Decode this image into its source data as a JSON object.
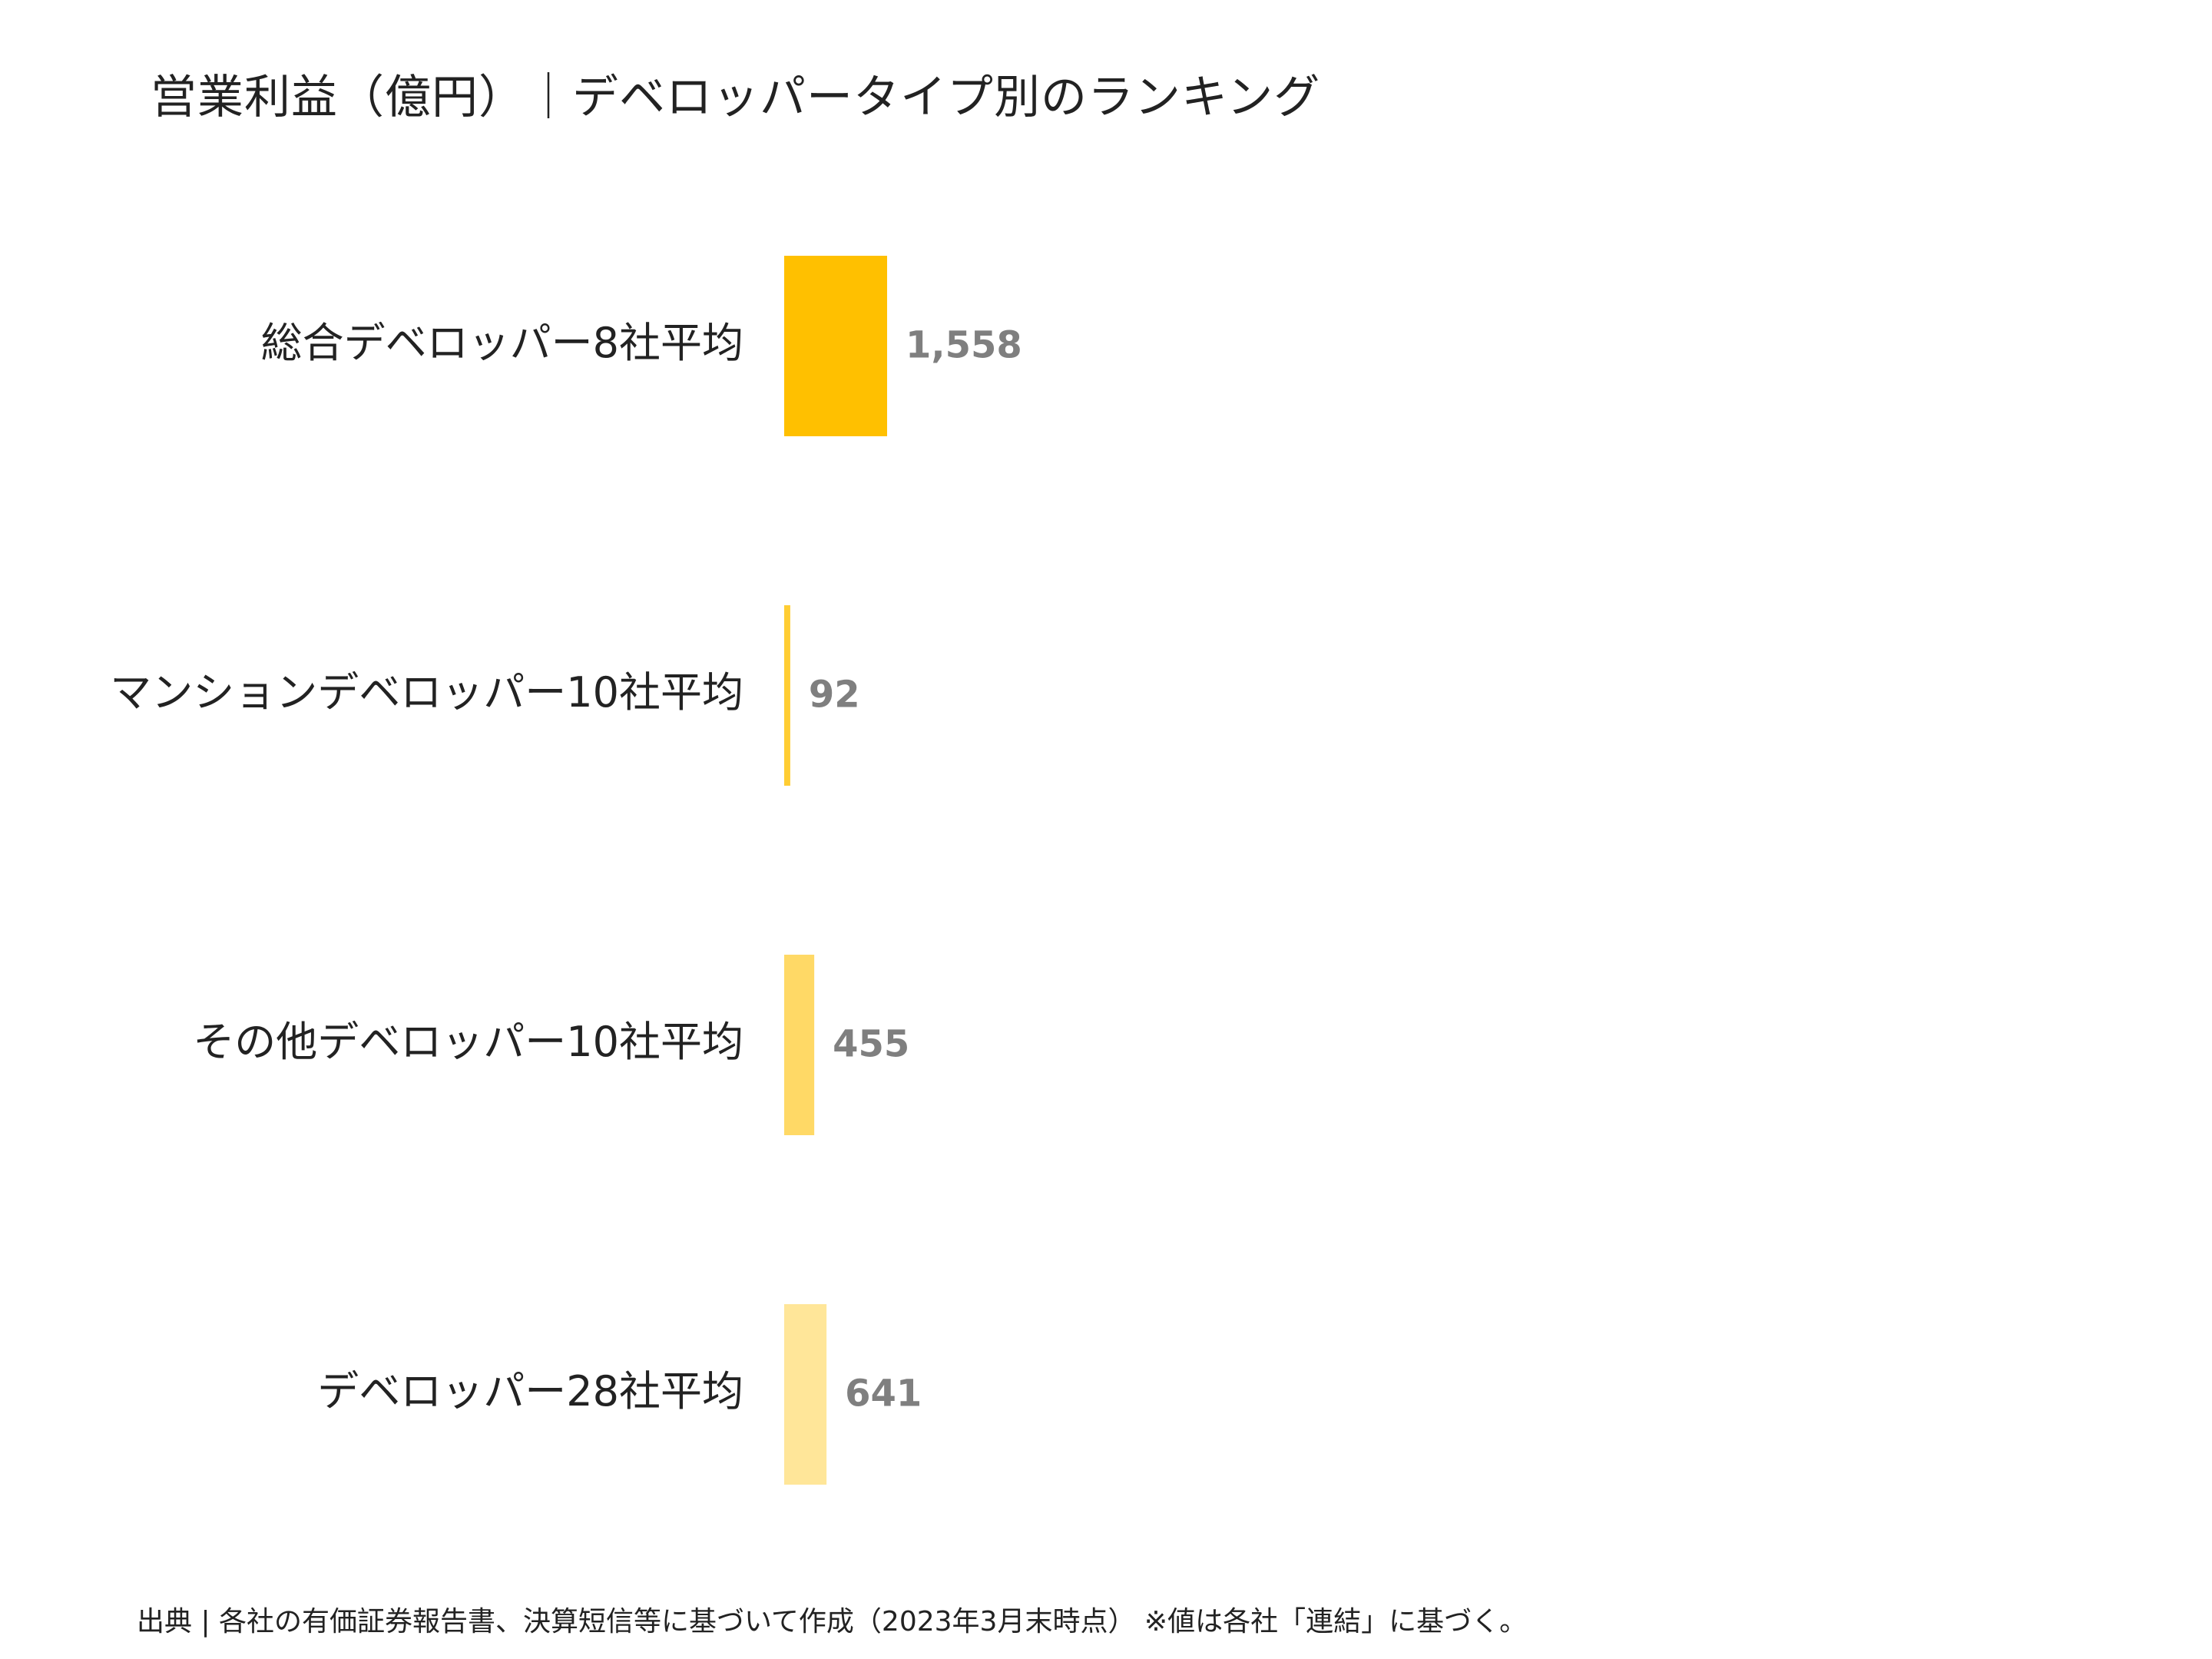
{
  "chart_data": {
    "type": "bar",
    "orientation": "horizontal",
    "title": "営業利益（億円）｜デベロッパータイプ別のランキング",
    "categories": [
      "総合デベロッパー8社平均",
      "マンションデベロッパー10社平均",
      "その他デベロッパー10社平均",
      "デベロッパー28社平均"
    ],
    "values": [
      1558,
      92,
      455,
      641
    ],
    "value_labels": [
      "1,558",
      "92",
      "455",
      "641"
    ],
    "colors": [
      "#FFC000",
      "#FFCD33",
      "#FFD966",
      "#FFE699"
    ],
    "xlim": [
      0,
      6000
    ],
    "grid": false,
    "legend": "none"
  },
  "footer": {
    "source": "出典 | 各社の有価証券報告書、決算短信等に基づいて作成（2023年3月末時点） ※値は各社「連結」に基づく。"
  }
}
